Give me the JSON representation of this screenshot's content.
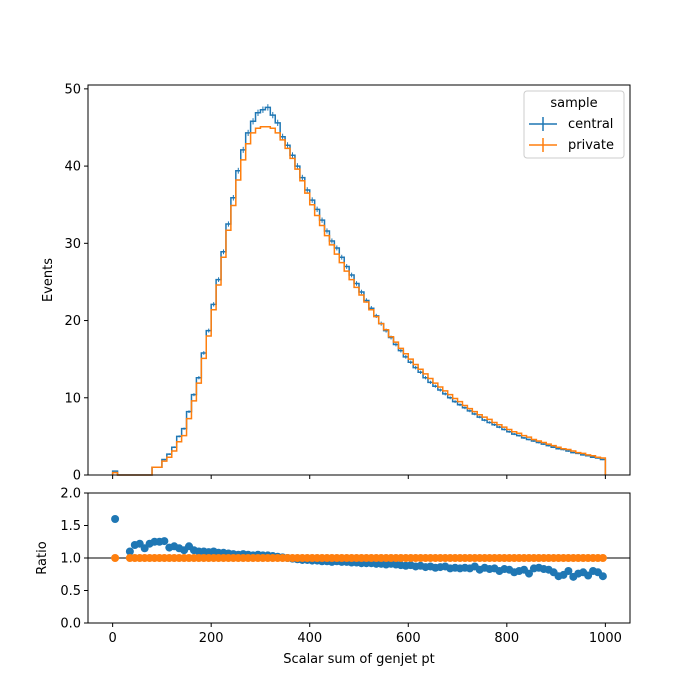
{
  "chart_data": [
    {
      "type": "line",
      "subtype": "step-histogram",
      "xlabel": "",
      "ylabel": "Events",
      "xlim": [
        -50,
        1050
      ],
      "ylim": [
        0,
        50.5
      ],
      "yticks": [
        0,
        10,
        20,
        30,
        40,
        50
      ],
      "xticks": [
        0,
        200,
        400,
        600,
        800,
        1000
      ],
      "show_xtick_labels": false,
      "legend": {
        "title": "sample",
        "placement": "top-right"
      },
      "bin_edges_range": [
        0,
        1000
      ],
      "bin_width": 10,
      "series": [
        {
          "name": "central",
          "color": "#1f77b4",
          "values": [
            0.5,
            0,
            0,
            0,
            0,
            0,
            0,
            0,
            1.0,
            1.0,
            2.0,
            2.7,
            3.6,
            5.0,
            6.0,
            8.2,
            10.4,
            12.6,
            15.8,
            18.7,
            22.1,
            25.3,
            28.9,
            32.5,
            35.9,
            39.4,
            42.1,
            44.3,
            45.8,
            46.9,
            47.3,
            47.6,
            46.6,
            45.6,
            43.8,
            42.7,
            41.4,
            40.0,
            38.5,
            36.9,
            35.6,
            34.4,
            33.0,
            31.6,
            30.3,
            29.4,
            28.2,
            27.0,
            25.9,
            24.8,
            23.7,
            22.6,
            21.6,
            20.6,
            19.6,
            18.7,
            17.8,
            16.9,
            16.1,
            15.3,
            14.6,
            13.9,
            13.3,
            12.6,
            12.0,
            11.5,
            11.0,
            10.5,
            10.0,
            9.5,
            9.1,
            8.7,
            8.3,
            7.9,
            7.5,
            7.1,
            6.8,
            6.5,
            6.2,
            5.9,
            5.6,
            5.3,
            5.1,
            4.8,
            4.6,
            4.4,
            4.2,
            4.0,
            3.8,
            3.6,
            3.4,
            3.3,
            3.1,
            2.9,
            2.8,
            2.6,
            2.5,
            2.3,
            2.2,
            2.0
          ]
        },
        {
          "name": "private",
          "color": "#ff7f0e",
          "values": [
            0.3,
            0,
            0,
            0,
            0,
            0,
            0,
            0,
            1.0,
            1.0,
            1.8,
            2.3,
            3.1,
            4.3,
            5.1,
            7.3,
            9.6,
            11.9,
            15.1,
            18.0,
            21.4,
            24.6,
            28.2,
            31.7,
            34.9,
            38.2,
            40.8,
            42.9,
            44.3,
            44.9,
            45.1,
            45.1,
            44.9,
            44.3,
            43.4,
            42.3,
            41.0,
            39.6,
            38.1,
            36.5,
            35.0,
            33.6,
            32.3,
            31.0,
            29.8,
            28.6,
            27.5,
            26.4,
            25.3,
            24.3,
            23.3,
            22.4,
            21.4,
            20.5,
            19.6,
            18.8,
            17.9,
            17.2,
            16.4,
            15.7,
            15.0,
            14.3,
            13.7,
            13.1,
            12.5,
            11.9,
            11.4,
            10.9,
            10.4,
            9.9,
            9.5,
            9.0,
            8.6,
            8.2,
            7.8,
            7.5,
            7.2,
            6.8,
            6.5,
            6.2,
            5.9,
            5.6,
            5.4,
            5.1,
            4.9,
            4.6,
            4.4,
            4.2,
            4.0,
            3.8,
            3.6,
            3.4,
            3.3,
            3.1,
            2.9,
            2.8,
            2.6,
            2.5,
            2.3,
            2.2
          ]
        }
      ]
    },
    {
      "type": "scatter",
      "xlabel": "Scalar sum of genjet pt",
      "ylabel": "Ratio",
      "xlim": [
        -50,
        1050
      ],
      "ylim": [
        0,
        2.0
      ],
      "yticks": [
        "0.0",
        "0.5",
        "1.0",
        "1.5",
        "2.0"
      ],
      "xticks": [
        0,
        200,
        400,
        600,
        800,
        1000
      ],
      "reference_line": 1.0,
      "series": [
        {
          "name": "central",
          "color": "#1f77b4",
          "x": [
            5,
            35,
            45,
            55,
            65,
            75,
            85,
            95,
            105,
            115,
            125,
            135,
            145,
            155,
            165,
            175,
            185,
            195,
            205,
            215,
            225,
            235,
            245,
            255,
            265,
            275,
            285,
            295,
            305,
            315,
            325,
            335,
            345,
            355,
            365,
            375,
            385,
            395,
            405,
            415,
            425,
            435,
            445,
            455,
            465,
            475,
            485,
            495,
            505,
            515,
            525,
            535,
            545,
            555,
            565,
            575,
            585,
            595,
            605,
            615,
            625,
            635,
            645,
            655,
            665,
            675,
            685,
            695,
            705,
            715,
            725,
            735,
            745,
            755,
            765,
            775,
            785,
            795,
            805,
            815,
            825,
            835,
            845,
            855,
            865,
            875,
            885,
            895,
            905,
            915,
            925,
            935,
            945,
            955,
            965,
            975,
            985,
            995
          ],
          "y": [
            1.6,
            1.1,
            1.2,
            1.22,
            1.15,
            1.22,
            1.25,
            1.25,
            1.26,
            1.16,
            1.18,
            1.15,
            1.12,
            1.18,
            1.12,
            1.1,
            1.1,
            1.09,
            1.1,
            1.08,
            1.08,
            1.07,
            1.06,
            1.05,
            1.06,
            1.05,
            1.04,
            1.05,
            1.04,
            1.04,
            1.03,
            1.02,
            1.01,
            1.0,
            0.99,
            0.98,
            0.97,
            0.97,
            0.96,
            0.96,
            0.95,
            0.95,
            0.94,
            0.95,
            0.94,
            0.94,
            0.93,
            0.93,
            0.92,
            0.92,
            0.92,
            0.91,
            0.91,
            0.9,
            0.91,
            0.9,
            0.89,
            0.88,
            0.89,
            0.87,
            0.88,
            0.86,
            0.87,
            0.85,
            0.86,
            0.87,
            0.84,
            0.85,
            0.84,
            0.85,
            0.84,
            0.87,
            0.82,
            0.85,
            0.83,
            0.84,
            0.8,
            0.83,
            0.82,
            0.78,
            0.8,
            0.82,
            0.76,
            0.84,
            0.85,
            0.83,
            0.82,
            0.78,
            0.72,
            0.74,
            0.8,
            0.71,
            0.76,
            0.78,
            0.73,
            0.8,
            0.78,
            0.72
          ]
        },
        {
          "name": "private",
          "color": "#ff7f0e",
          "x": [
            5,
            35,
            45,
            55,
            65,
            75,
            85,
            95,
            105,
            115,
            125,
            135,
            145,
            155,
            165,
            175,
            185,
            195,
            205,
            215,
            225,
            235,
            245,
            255,
            265,
            275,
            285,
            295,
            305,
            315,
            325,
            335,
            345,
            355,
            365,
            375,
            385,
            395,
            405,
            415,
            425,
            435,
            445,
            455,
            465,
            475,
            485,
            495,
            505,
            515,
            525,
            535,
            545,
            555,
            565,
            575,
            585,
            595,
            605,
            615,
            625,
            635,
            645,
            655,
            665,
            675,
            685,
            695,
            705,
            715,
            725,
            735,
            745,
            755,
            765,
            775,
            785,
            795,
            805,
            815,
            825,
            835,
            845,
            855,
            865,
            875,
            885,
            895,
            905,
            915,
            925,
            935,
            945,
            955,
            965,
            975,
            985,
            995
          ],
          "y": [
            1,
            1,
            1,
            1,
            1,
            1,
            1,
            1,
            1,
            1,
            1,
            1,
            1,
            1,
            1,
            1,
            1,
            1,
            1,
            1,
            1,
            1,
            1,
            1,
            1,
            1,
            1,
            1,
            1,
            1,
            1,
            1,
            1,
            1,
            1,
            1,
            1,
            1,
            1,
            1,
            1,
            1,
            1,
            1,
            1,
            1,
            1,
            1,
            1,
            1,
            1,
            1,
            1,
            1,
            1,
            1,
            1,
            1,
            1,
            1,
            1,
            1,
            1,
            1,
            1,
            1,
            1,
            1,
            1,
            1,
            1,
            1,
            1,
            1,
            1,
            1,
            1,
            1,
            1,
            1,
            1,
            1,
            1,
            1,
            1,
            1,
            1,
            1,
            1,
            1,
            1,
            1,
            1,
            1,
            1,
            1,
            1,
            1
          ]
        }
      ]
    }
  ]
}
